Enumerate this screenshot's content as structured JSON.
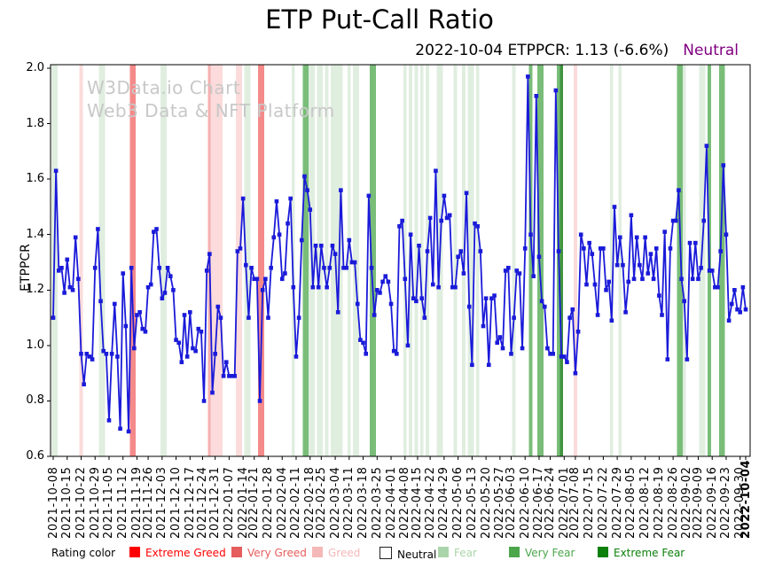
{
  "title": "ETP Put-Call Ratio",
  "subtitle": {
    "main": "2022-10-04 ETPPCR: 1.13 (-6.6%)",
    "status": "Neutral",
    "status_color": "#800080"
  },
  "watermark": {
    "line1": "W3Data.io Chart",
    "line2": "Web3 Data & NFT Platform"
  },
  "y_axis": {
    "label": "ETPPCR",
    "ticks": [
      "0.6",
      "0.8",
      "1.0",
      "1.2",
      "1.4",
      "1.6",
      "1.8",
      "2.0"
    ]
  },
  "legend": {
    "title": "Rating color",
    "items": [
      {
        "label": "Extreme Greed",
        "color": "#ff0000",
        "swatch": "#ff0000",
        "x": 146
      },
      {
        "label": "Very Greed",
        "color": "#e55d5d",
        "swatch": "#e55d5d",
        "x": 261
      },
      {
        "label": "Greed",
        "color": "#f5b8b8",
        "swatch": "#f5b8b8",
        "x": 352
      },
      {
        "label": "Neutral",
        "color": "#000000",
        "swatch": "#ffffff",
        "border": "#222222",
        "x": 428
      },
      {
        "label": "Fear",
        "color": "#aad5aa",
        "swatch": "#aad5aa",
        "x": 494
      },
      {
        "label": "Very Fear",
        "color": "#4ba64b",
        "swatch": "#4ba64b",
        "x": 574
      },
      {
        "label": "Extreme Fear",
        "color": "#0c800c",
        "swatch": "#0c800c",
        "x": 674
      }
    ]
  },
  "chart_data": {
    "type": "line",
    "title": "ETP Put-Call Ratio",
    "ylabel": "ETPPCR",
    "ylim": [
      0.6,
      2.0
    ],
    "grid": false,
    "line_color": "#1a1ad9",
    "marker": "square",
    "rating_codes": {
      "EG": "Extreme Greed",
      "VG": "Very Greed",
      "G": "Greed",
      "N": "Neutral",
      "F": "Fear",
      "VF": "Very Fear",
      "EF": "Extreme Fear"
    },
    "band_colors": {
      "EG": "#f58a8a",
      "VG": "#f5b0b0",
      "G": "#fbdbdb",
      "F": "#e0eee0",
      "VF": "#79bd79",
      "EF": "#3f943f"
    },
    "x_tick_labels": [
      "2021-10-08",
      "2021-10-15",
      "2021-10-22",
      "2021-10-29",
      "2021-11-05",
      "2021-11-12",
      "2021-11-19",
      "2021-11-26",
      "2021-12-03",
      "2021-12-10",
      "2021-12-17",
      "2021-12-24",
      "2021-12-31",
      "2022-01-07",
      "2022-01-14",
      "2022-01-21",
      "2022-01-28",
      "2022-02-04",
      "2022-02-11",
      "2022-02-18",
      "2022-02-25",
      "2022-03-04",
      "2022-03-11",
      "2022-03-18",
      "2022-03-25",
      "2022-04-01",
      "2022-04-08",
      "2022-04-15",
      "2022-04-22",
      "2022-04-29",
      "2022-05-06",
      "2022-05-13",
      "2022-05-20",
      "2022-05-27",
      "2022-06-03",
      "2022-06-10",
      "2022-06-17",
      "2022-06-24",
      "2022-07-01",
      "2022-07-08",
      "2022-07-15",
      "2022-07-22",
      "2022-07-29",
      "2022-08-05",
      "2022-08-12",
      "2022-08-19",
      "2022-08-26",
      "2022-09-02",
      "2022-09-09",
      "2022-09-16",
      "2022-09-23",
      "2022-09-30",
      "2022-10-04"
    ],
    "points": [
      [
        "2021-10-08",
        1.1,
        "F"
      ],
      [
        "2021-10-11",
        1.63,
        "F"
      ],
      [
        "2021-10-12",
        1.27,
        "N"
      ],
      [
        "2021-10-13",
        1.28,
        "N"
      ],
      [
        "2021-10-14",
        1.19,
        "N"
      ],
      [
        "2021-10-15",
        1.31,
        "N"
      ],
      [
        "2021-10-18",
        1.21,
        "N"
      ],
      [
        "2021-10-19",
        1.2,
        "N"
      ],
      [
        "2021-10-20",
        1.39,
        "N"
      ],
      [
        "2021-10-21",
        1.24,
        "N"
      ],
      [
        "2021-10-22",
        0.97,
        "G"
      ],
      [
        "2021-10-25",
        0.86,
        "N"
      ],
      [
        "2021-10-26",
        0.97,
        "N"
      ],
      [
        "2021-10-27",
        0.96,
        "N"
      ],
      [
        "2021-10-28",
        0.95,
        "N"
      ],
      [
        "2021-10-29",
        1.28,
        "N"
      ],
      [
        "2021-11-01",
        1.42,
        "N"
      ],
      [
        "2021-11-02",
        1.16,
        "F"
      ],
      [
        "2021-11-03",
        0.98,
        "F"
      ],
      [
        "2021-11-04",
        0.97,
        "N"
      ],
      [
        "2021-11-05",
        0.73,
        "N"
      ],
      [
        "2021-11-08",
        0.97,
        "N"
      ],
      [
        "2021-11-09",
        1.15,
        "N"
      ],
      [
        "2021-11-10",
        0.96,
        "N"
      ],
      [
        "2021-11-11",
        0.7,
        "N"
      ],
      [
        "2021-11-12",
        1.26,
        "N"
      ],
      [
        "2021-11-15",
        1.07,
        "N"
      ],
      [
        "2021-11-16",
        0.69,
        "N"
      ],
      [
        "2021-11-17",
        1.28,
        "EG"
      ],
      [
        "2021-11-18",
        0.99,
        "EG"
      ],
      [
        "2021-11-19",
        1.11,
        "N"
      ],
      [
        "2021-11-22",
        1.12,
        "N"
      ],
      [
        "2021-11-23",
        1.06,
        "N"
      ],
      [
        "2021-11-24",
        1.05,
        "N"
      ],
      [
        "2021-11-26",
        1.21,
        "N"
      ],
      [
        "2021-11-29",
        1.22,
        "N"
      ],
      [
        "2021-11-30",
        1.41,
        "N"
      ],
      [
        "2021-12-01",
        1.42,
        "N"
      ],
      [
        "2021-12-02",
        1.28,
        "N"
      ],
      [
        "2021-12-03",
        1.17,
        "F"
      ],
      [
        "2021-12-06",
        1.19,
        "F"
      ],
      [
        "2021-12-07",
        1.28,
        "N"
      ],
      [
        "2021-12-08",
        1.25,
        "N"
      ],
      [
        "2021-12-09",
        1.2,
        "N"
      ],
      [
        "2021-12-10",
        1.02,
        "N"
      ],
      [
        "2021-12-13",
        1.01,
        "N"
      ],
      [
        "2021-12-14",
        0.94,
        "N"
      ],
      [
        "2021-12-15",
        1.11,
        "N"
      ],
      [
        "2021-12-16",
        0.96,
        "N"
      ],
      [
        "2021-12-17",
        1.12,
        "N"
      ],
      [
        "2021-12-20",
        0.99,
        "N"
      ],
      [
        "2021-12-21",
        0.98,
        "N"
      ],
      [
        "2021-12-22",
        1.06,
        "N"
      ],
      [
        "2021-12-23",
        1.05,
        "N"
      ],
      [
        "2021-12-27",
        0.8,
        "N"
      ],
      [
        "2021-12-28",
        1.27,
        "N"
      ],
      [
        "2021-12-29",
        1.33,
        "VG"
      ],
      [
        "2021-12-30",
        0.83,
        "G"
      ],
      [
        "2021-12-31",
        0.97,
        "G"
      ],
      [
        "2022-01-03",
        1.14,
        "G"
      ],
      [
        "2022-01-04",
        1.1,
        "G"
      ],
      [
        "2022-01-05",
        0.89,
        "N"
      ],
      [
        "2022-01-06",
        0.94,
        "N"
      ],
      [
        "2022-01-07",
        0.89,
        "N"
      ],
      [
        "2022-01-10",
        0.89,
        "N"
      ],
      [
        "2022-01-11",
        0.89,
        "N"
      ],
      [
        "2022-01-12",
        1.34,
        "G"
      ],
      [
        "2022-01-13",
        1.35,
        "G"
      ],
      [
        "2022-01-14",
        1.53,
        "N"
      ],
      [
        "2022-01-18",
        1.29,
        "F"
      ],
      [
        "2022-01-19",
        1.1,
        "F"
      ],
      [
        "2022-01-20",
        1.28,
        "N"
      ],
      [
        "2022-01-21",
        1.24,
        "N"
      ],
      [
        "2022-01-24",
        1.24,
        "N"
      ],
      [
        "2022-01-25",
        0.8,
        "EG"
      ],
      [
        "2022-01-26",
        1.2,
        "EG"
      ],
      [
        "2022-01-27",
        1.24,
        "N"
      ],
      [
        "2022-01-28",
        1.1,
        "N"
      ],
      [
        "2022-01-31",
        1.28,
        "N"
      ],
      [
        "2022-02-01",
        1.39,
        "N"
      ],
      [
        "2022-02-02",
        1.52,
        "N"
      ],
      [
        "2022-02-03",
        1.4,
        "N"
      ],
      [
        "2022-02-04",
        1.24,
        "N"
      ],
      [
        "2022-02-07",
        1.26,
        "N"
      ],
      [
        "2022-02-08",
        1.44,
        "N"
      ],
      [
        "2022-02-09",
        1.53,
        "N"
      ],
      [
        "2022-02-10",
        1.21,
        "F"
      ],
      [
        "2022-02-11",
        0.96,
        "N"
      ],
      [
        "2022-02-14",
        1.1,
        "N"
      ],
      [
        "2022-02-15",
        1.38,
        "N"
      ],
      [
        "2022-02-16",
        1.61,
        "VF"
      ],
      [
        "2022-02-17",
        1.56,
        "VF"
      ],
      [
        "2022-02-18",
        1.49,
        "F"
      ],
      [
        "2022-02-22",
        1.21,
        "F"
      ],
      [
        "2022-02-23",
        1.36,
        "N"
      ],
      [
        "2022-02-24",
        1.21,
        "F"
      ],
      [
        "2022-02-25",
        1.36,
        "F"
      ],
      [
        "2022-02-28",
        1.28,
        "N"
      ],
      [
        "2022-03-01",
        1.21,
        "F"
      ],
      [
        "2022-03-02",
        1.28,
        "N"
      ],
      [
        "2022-03-03",
        1.36,
        "F"
      ],
      [
        "2022-03-04",
        1.33,
        "F"
      ],
      [
        "2022-03-07",
        1.12,
        "F"
      ],
      [
        "2022-03-08",
        1.56,
        "F"
      ],
      [
        "2022-03-09",
        1.28,
        "N"
      ],
      [
        "2022-03-10",
        1.28,
        "N"
      ],
      [
        "2022-03-11",
        1.38,
        "F"
      ],
      [
        "2022-03-14",
        1.3,
        "N"
      ],
      [
        "2022-03-15",
        1.3,
        "F"
      ],
      [
        "2022-03-16",
        1.15,
        "F"
      ],
      [
        "2022-03-17",
        1.02,
        "N"
      ],
      [
        "2022-03-18",
        1.01,
        "N"
      ],
      [
        "2022-03-21",
        0.97,
        "N"
      ],
      [
        "2022-03-22",
        1.54,
        "N"
      ],
      [
        "2022-03-23",
        1.28,
        "VF"
      ],
      [
        "2022-03-24",
        1.11,
        "VF"
      ],
      [
        "2022-03-25",
        1.2,
        "N"
      ],
      [
        "2022-03-28",
        1.19,
        "N"
      ],
      [
        "2022-03-29",
        1.23,
        "N"
      ],
      [
        "2022-03-30",
        1.25,
        "N"
      ],
      [
        "2022-03-31",
        1.23,
        "N"
      ],
      [
        "2022-04-01",
        1.15,
        "N"
      ],
      [
        "2022-04-04",
        0.98,
        "N"
      ],
      [
        "2022-04-05",
        0.97,
        "N"
      ],
      [
        "2022-04-06",
        1.43,
        "N"
      ],
      [
        "2022-04-07",
        1.45,
        "N"
      ],
      [
        "2022-04-08",
        1.24,
        "F"
      ],
      [
        "2022-04-11",
        1.0,
        "N"
      ],
      [
        "2022-04-12",
        1.4,
        "F"
      ],
      [
        "2022-04-13",
        1.17,
        "N"
      ],
      [
        "2022-04-14",
        1.16,
        "F"
      ],
      [
        "2022-04-18",
        1.36,
        "N"
      ],
      [
        "2022-04-19",
        1.17,
        "F"
      ],
      [
        "2022-04-20",
        1.1,
        "N"
      ],
      [
        "2022-04-21",
        1.34,
        "F"
      ],
      [
        "2022-04-22",
        1.46,
        "N"
      ],
      [
        "2022-04-25",
        1.22,
        "N"
      ],
      [
        "2022-04-26",
        1.63,
        "N"
      ],
      [
        "2022-04-27",
        1.21,
        "F"
      ],
      [
        "2022-04-28",
        1.45,
        "F"
      ],
      [
        "2022-04-29",
        1.54,
        "N"
      ],
      [
        "2022-05-02",
        1.46,
        "N"
      ],
      [
        "2022-05-03",
        1.47,
        "N"
      ],
      [
        "2022-05-04",
        1.21,
        "N"
      ],
      [
        "2022-05-05",
        1.21,
        "F"
      ],
      [
        "2022-05-06",
        1.32,
        "N"
      ],
      [
        "2022-05-09",
        1.34,
        "N"
      ],
      [
        "2022-05-10",
        1.26,
        "F"
      ],
      [
        "2022-05-11",
        1.55,
        "N"
      ],
      [
        "2022-05-12",
        1.14,
        "F"
      ],
      [
        "2022-05-13",
        0.93,
        "F"
      ],
      [
        "2022-05-16",
        1.44,
        "N"
      ],
      [
        "2022-05-17",
        1.43,
        "F"
      ],
      [
        "2022-05-18",
        1.34,
        "N"
      ],
      [
        "2022-05-19",
        1.07,
        "N"
      ],
      [
        "2022-05-20",
        1.17,
        "N"
      ],
      [
        "2022-05-23",
        0.93,
        "N"
      ],
      [
        "2022-05-24",
        1.17,
        "N"
      ],
      [
        "2022-05-25",
        1.18,
        "N"
      ],
      [
        "2022-05-26",
        1.01,
        "N"
      ],
      [
        "2022-05-27",
        1.03,
        "N"
      ],
      [
        "2022-05-31",
        0.99,
        "N"
      ],
      [
        "2022-06-01",
        1.27,
        "N"
      ],
      [
        "2022-06-02",
        1.28,
        "N"
      ],
      [
        "2022-06-03",
        0.97,
        "N"
      ],
      [
        "2022-06-06",
        1.1,
        "F"
      ],
      [
        "2022-06-07",
        1.27,
        "N"
      ],
      [
        "2022-06-08",
        1.26,
        "N"
      ],
      [
        "2022-06-09",
        0.99,
        "N"
      ],
      [
        "2022-06-10",
        1.35,
        "N"
      ],
      [
        "2022-06-13",
        1.97,
        "N"
      ],
      [
        "2022-06-14",
        1.4,
        "VF"
      ],
      [
        "2022-06-15",
        1.25,
        "N"
      ],
      [
        "2022-06-16",
        1.9,
        "N"
      ],
      [
        "2022-06-17",
        1.32,
        "VF"
      ],
      [
        "2022-06-21",
        1.16,
        "VF"
      ],
      [
        "2022-06-22",
        1.14,
        "N"
      ],
      [
        "2022-06-23",
        0.99,
        "N"
      ],
      [
        "2022-06-24",
        0.97,
        "N"
      ],
      [
        "2022-06-27",
        0.97,
        "N"
      ],
      [
        "2022-06-28",
        1.92,
        "N"
      ],
      [
        "2022-06-29",
        1.34,
        "VF"
      ],
      [
        "2022-06-30",
        0.96,
        "EF"
      ],
      [
        "2022-07-01",
        0.96,
        "N"
      ],
      [
        "2022-07-05",
        0.94,
        "N"
      ],
      [
        "2022-07-06",
        1.1,
        "N"
      ],
      [
        "2022-07-07",
        1.13,
        "N"
      ],
      [
        "2022-07-08",
        0.9,
        "G"
      ],
      [
        "2022-07-11",
        1.05,
        "N"
      ],
      [
        "2022-07-12",
        1.4,
        "N"
      ],
      [
        "2022-07-13",
        1.35,
        "N"
      ],
      [
        "2022-07-14",
        1.22,
        "N"
      ],
      [
        "2022-07-15",
        1.37,
        "N"
      ],
      [
        "2022-07-18",
        1.33,
        "N"
      ],
      [
        "2022-07-19",
        1.22,
        "N"
      ],
      [
        "2022-07-20",
        1.11,
        "N"
      ],
      [
        "2022-07-21",
        1.35,
        "N"
      ],
      [
        "2022-07-22",
        1.35,
        "N"
      ],
      [
        "2022-07-25",
        1.2,
        "N"
      ],
      [
        "2022-07-26",
        1.23,
        "N"
      ],
      [
        "2022-07-27",
        1.09,
        "F"
      ],
      [
        "2022-07-28",
        1.5,
        "N"
      ],
      [
        "2022-07-29",
        1.29,
        "N"
      ],
      [
        "2022-08-01",
        1.39,
        "F"
      ],
      [
        "2022-08-02",
        1.29,
        "N"
      ],
      [
        "2022-08-03",
        1.12,
        "N"
      ],
      [
        "2022-08-04",
        1.23,
        "N"
      ],
      [
        "2022-08-05",
        1.47,
        "N"
      ],
      [
        "2022-08-08",
        1.24,
        "N"
      ],
      [
        "2022-08-09",
        1.39,
        "N"
      ],
      [
        "2022-08-10",
        1.29,
        "N"
      ],
      [
        "2022-08-11",
        1.24,
        "N"
      ],
      [
        "2022-08-12",
        1.39,
        "N"
      ],
      [
        "2022-08-15",
        1.26,
        "N"
      ],
      [
        "2022-08-16",
        1.33,
        "N"
      ],
      [
        "2022-08-17",
        1.24,
        "N"
      ],
      [
        "2022-08-18",
        1.35,
        "N"
      ],
      [
        "2022-08-19",
        1.18,
        "N"
      ],
      [
        "2022-08-22",
        1.11,
        "N"
      ],
      [
        "2022-08-23",
        1.41,
        "N"
      ],
      [
        "2022-08-24",
        0.95,
        "N"
      ],
      [
        "2022-08-25",
        1.35,
        "N"
      ],
      [
        "2022-08-26",
        1.45,
        "N"
      ],
      [
        "2022-08-29",
        1.45,
        "N"
      ],
      [
        "2022-08-30",
        1.56,
        "VF"
      ],
      [
        "2022-08-31",
        1.24,
        "VF"
      ],
      [
        "2022-09-01",
        1.16,
        "F"
      ],
      [
        "2022-09-02",
        0.95,
        "N"
      ],
      [
        "2022-09-06",
        1.37,
        "N"
      ],
      [
        "2022-09-07",
        1.24,
        "N"
      ],
      [
        "2022-09-08",
        1.37,
        "N"
      ],
      [
        "2022-09-09",
        1.24,
        "N"
      ],
      [
        "2022-09-12",
        1.28,
        "F"
      ],
      [
        "2022-09-13",
        1.45,
        "F"
      ],
      [
        "2022-09-14",
        1.72,
        "N"
      ],
      [
        "2022-09-15",
        1.27,
        "VF"
      ],
      [
        "2022-09-16",
        1.27,
        "N"
      ],
      [
        "2022-09-19",
        1.21,
        "N"
      ],
      [
        "2022-09-20",
        1.21,
        "N"
      ],
      [
        "2022-09-21",
        1.34,
        "VF"
      ],
      [
        "2022-09-22",
        1.65,
        "VF"
      ],
      [
        "2022-09-23",
        1.4,
        "N"
      ],
      [
        "2022-09-26",
        1.09,
        "N"
      ],
      [
        "2022-09-27",
        1.15,
        "N"
      ],
      [
        "2022-09-28",
        1.2,
        "N"
      ],
      [
        "2022-09-29",
        1.13,
        "N"
      ],
      [
        "2022-09-30",
        1.12,
        "N"
      ],
      [
        "2022-10-03",
        1.21,
        "N"
      ],
      [
        "2022-10-04",
        1.13,
        "N"
      ]
    ]
  }
}
